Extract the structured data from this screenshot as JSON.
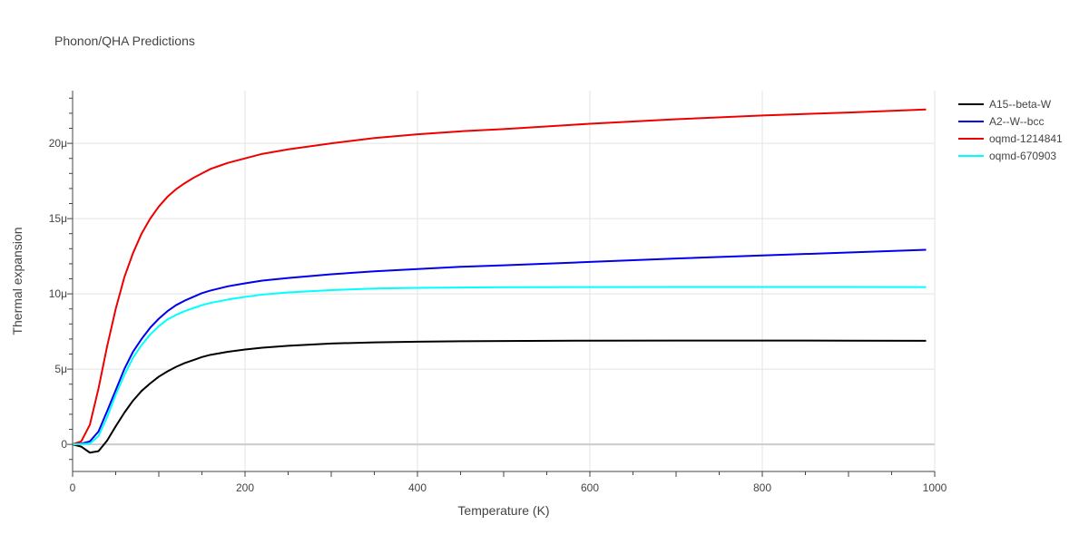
{
  "chart_data": {
    "type": "line",
    "title": "Phonon/QHA Predictions",
    "xlabel": "Temperature (K)",
    "ylabel": "Thermal expansion",
    "xlim": [
      0,
      1000
    ],
    "ylim": [
      -1.8e-06,
      2.35e-05
    ],
    "x_ticks": [
      0,
      200,
      400,
      600,
      800,
      1000
    ],
    "x_tick_labels": [
      "0",
      "200",
      "400",
      "600",
      "800",
      "1000"
    ],
    "y_ticks": [
      0,
      5e-06,
      1e-05,
      1.5e-05,
      2e-05
    ],
    "y_tick_labels": [
      "0",
      "5μ",
      "10μ",
      "15μ",
      "20μ"
    ],
    "grid": true,
    "legend_position": "top-right",
    "series": [
      {
        "name": "A15--beta-W",
        "color": "#000000",
        "x": [
          0,
          10,
          20,
          30,
          40,
          50,
          60,
          70,
          80,
          90,
          100,
          110,
          120,
          130,
          140,
          150,
          160,
          180,
          200,
          220,
          250,
          300,
          350,
          400,
          450,
          500,
          600,
          700,
          800,
          900,
          990
        ],
        "y": [
          0,
          -1.5e-07,
          -5.5e-07,
          -4.5e-07,
          2.5e-07,
          1.2e-06,
          2.1e-06,
          2.9e-06,
          3.55e-06,
          4.05e-06,
          4.5e-06,
          4.85e-06,
          5.15e-06,
          5.4e-06,
          5.6e-06,
          5.8e-06,
          5.95e-06,
          6.15e-06,
          6.3e-06,
          6.42e-06,
          6.55e-06,
          6.7e-06,
          6.78e-06,
          6.82e-06,
          6.85e-06,
          6.87e-06,
          6.89e-06,
          6.9e-06,
          6.9e-06,
          6.89e-06,
          6.88e-06
        ]
      },
      {
        "name": "A2--W--bcc",
        "color": "#0000ee",
        "x": [
          0,
          10,
          20,
          30,
          40,
          50,
          60,
          70,
          80,
          90,
          100,
          110,
          120,
          130,
          140,
          150,
          160,
          180,
          200,
          220,
          250,
          300,
          350,
          400,
          450,
          500,
          600,
          700,
          800,
          900,
          990
        ],
        "y": [
          0,
          5e-08,
          2e-07,
          8.5e-07,
          2.2e-06,
          3.6e-06,
          5e-06,
          6.15e-06,
          7e-06,
          7.75e-06,
          8.35e-06,
          8.85e-06,
          9.25e-06,
          9.55e-06,
          9.8e-06,
          1.005e-05,
          1.022e-05,
          1.05e-05,
          1.07e-05,
          1.088e-05,
          1.105e-05,
          1.13e-05,
          1.15e-05,
          1.165e-05,
          1.18e-05,
          1.19e-05,
          1.212e-05,
          1.235e-05,
          1.255e-05,
          1.275e-05,
          1.293e-05
        ]
      },
      {
        "name": "oqmd-1214841",
        "color": "#ee0000",
        "x": [
          0,
          10,
          20,
          30,
          40,
          50,
          60,
          70,
          80,
          90,
          100,
          110,
          120,
          130,
          140,
          150,
          160,
          170,
          180,
          200,
          220,
          250,
          300,
          350,
          400,
          450,
          500,
          600,
          700,
          800,
          900,
          990
        ],
        "y": [
          0,
          2e-07,
          1.3e-06,
          3.7e-06,
          6.5e-06,
          9e-06,
          1.11e-05,
          1.27e-05,
          1.4e-05,
          1.5e-05,
          1.58e-05,
          1.645e-05,
          1.695e-05,
          1.735e-05,
          1.77e-05,
          1.8e-05,
          1.83e-05,
          1.85e-05,
          1.87e-05,
          1.9e-05,
          1.93e-05,
          1.96e-05,
          2e-05,
          2.035e-05,
          2.06e-05,
          2.08e-05,
          2.095e-05,
          2.13e-05,
          2.16e-05,
          2.185e-05,
          2.205e-05,
          2.225e-05
        ]
      },
      {
        "name": "oqmd-670903",
        "color": "#00ffff",
        "x": [
          0,
          10,
          20,
          30,
          40,
          50,
          60,
          70,
          80,
          90,
          100,
          110,
          120,
          130,
          140,
          150,
          160,
          180,
          200,
          220,
          250,
          300,
          350,
          400,
          450,
          500,
          600,
          700,
          800,
          900,
          990
        ],
        "y": [
          0,
          2e-08,
          5e-08,
          5.5e-07,
          1.8e-06,
          3.3e-06,
          4.6e-06,
          5.75e-06,
          6.6e-06,
          7.3e-06,
          7.85e-06,
          8.3e-06,
          8.6e-06,
          8.85e-06,
          9.05e-06,
          9.25e-06,
          9.4e-06,
          9.62e-06,
          9.8e-06,
          9.95e-06,
          1.01e-05,
          1.025e-05,
          1.035e-05,
          1.04e-05,
          1.042e-05,
          1.044e-05,
          1.045e-05,
          1.046e-05,
          1.046e-05,
          1.046e-05,
          1.045e-05
        ]
      }
    ]
  }
}
